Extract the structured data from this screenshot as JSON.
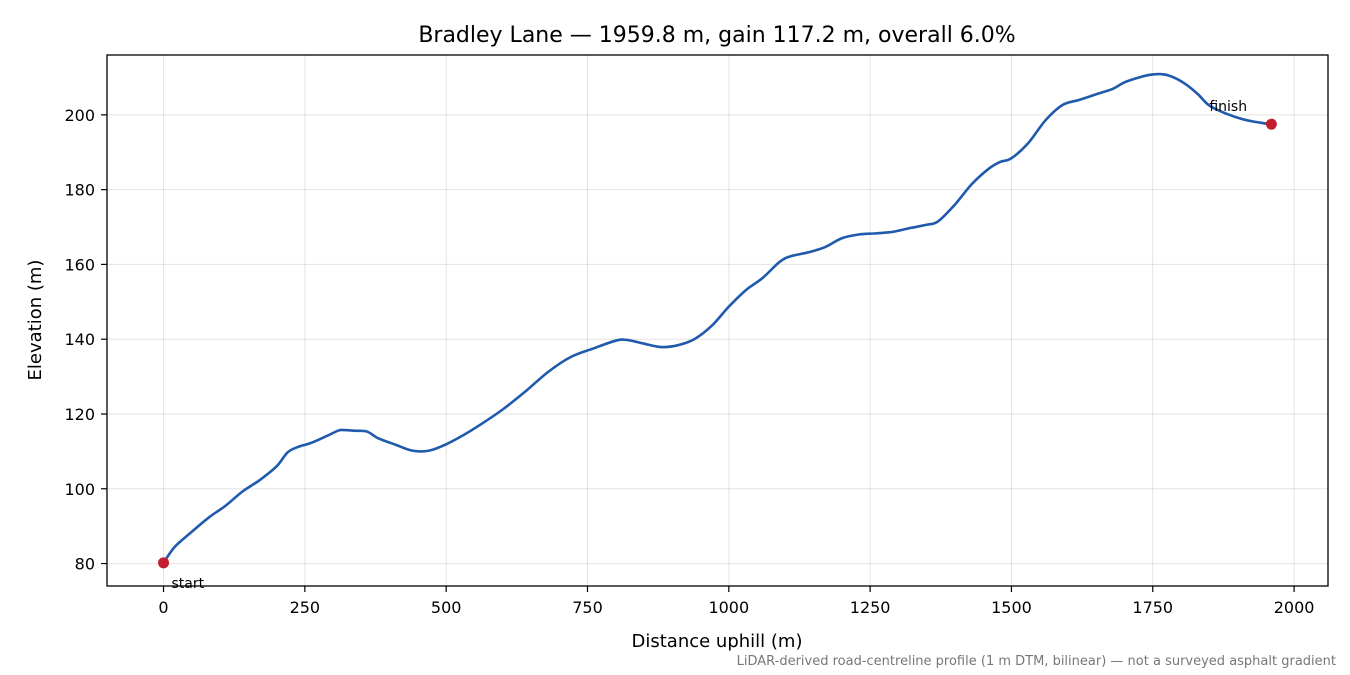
{
  "chart_data": {
    "type": "line",
    "title": "Bradley Lane — 1959.8 m, gain 117.2 m, overall 6.0%",
    "xlabel": "Distance uphill (m)",
    "ylabel": "Elevation (m)",
    "xlim": [
      -100,
      2060
    ],
    "ylim": [
      74,
      216
    ],
    "xticks": [
      0,
      250,
      500,
      750,
      1000,
      1250,
      1500,
      1750,
      2000
    ],
    "yticks": [
      80,
      100,
      120,
      140,
      160,
      180,
      200
    ],
    "grid": true,
    "series": [
      {
        "color": "#1f5aad",
        "x": [
          0,
          20,
          50,
          80,
          110,
          140,
          170,
          200,
          220,
          240,
          260,
          290,
          310,
          320,
          340,
          360,
          380,
          410,
          440,
          470,
          500,
          530,
          560,
          600,
          640,
          680,
          720,
          760,
          800,
          820,
          850,
          880,
          910,
          940,
          970,
          1000,
          1030,
          1060,
          1090,
          1110,
          1140,
          1170,
          1200,
          1230,
          1260,
          1290,
          1320,
          1350,
          1370,
          1400,
          1430,
          1460,
          1480,
          1500,
          1530,
          1560,
          1590,
          1620,
          1650,
          1680,
          1700,
          1730,
          1750,
          1770,
          1790,
          1810,
          1830,
          1850,
          1880,
          1910,
          1940,
          1959.8
        ],
        "y": [
          80.2,
          84.5,
          88.5,
          92.3,
          95.5,
          99.3,
          102.3,
          106.0,
          109.8,
          111.3,
          112.2,
          114.2,
          115.6,
          115.7,
          115.5,
          115.3,
          113.5,
          111.8,
          110.2,
          110.2,
          111.9,
          114.3,
          117.1,
          121.2,
          126.0,
          131.2,
          135.2,
          137.5,
          139.6,
          139.8,
          138.8,
          137.9,
          138.4,
          140.1,
          143.6,
          148.7,
          153.1,
          156.4,
          160.7,
          162.2,
          163.2,
          164.6,
          167.0,
          168.0,
          168.3,
          168.7,
          169.7,
          170.6,
          171.5,
          176.0,
          181.5,
          185.6,
          187.4,
          188.4,
          192.5,
          198.5,
          202.6,
          204.0,
          205.5,
          207.0,
          208.7,
          210.2,
          210.8,
          210.8,
          209.8,
          208.0,
          205.5,
          202.5,
          200.3,
          198.8,
          197.9,
          197.5
        ]
      }
    ],
    "markers": [
      {
        "label": "start",
        "x": 0,
        "y": 80.2,
        "color": "#c41e2e"
      },
      {
        "label": "finish",
        "x": 1959.8,
        "y": 197.5,
        "color": "#c41e2e"
      }
    ],
    "footnote": "LiDAR-derived road-centreline profile (1 m DTM, bilinear) — not a surveyed asphalt gradient"
  }
}
